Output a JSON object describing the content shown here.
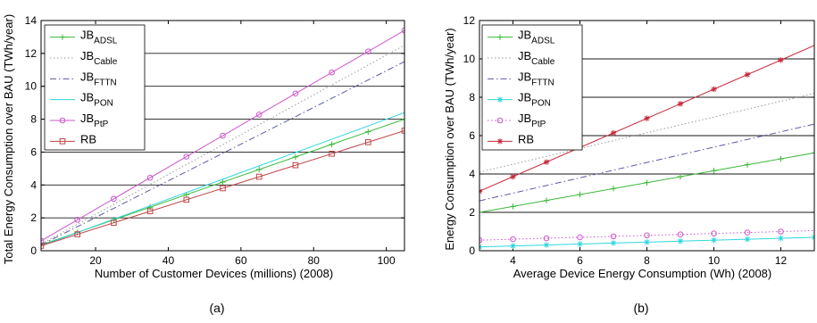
{
  "colors": {
    "green": "#39b839",
    "gray": "#9a9a9a",
    "navy": "#5a5aa0",
    "cyan": "#2fd6dd",
    "magenta": "#cc55cc",
    "red": "#c0454a",
    "darkred": "#c8283c"
  },
  "chart_data": [
    {
      "id": "a",
      "type": "line",
      "caption": "(a)",
      "xlabel": "Number of Customer Devices (millions) (2008)",
      "ylabel": "Total Energy Consumption over BAU (TWh/year)",
      "xlim": [
        5,
        105
      ],
      "ylim": [
        0,
        14
      ],
      "xticks": [
        20,
        40,
        60,
        80,
        100
      ],
      "yticks": [
        0,
        2,
        4,
        6,
        8,
        10,
        12,
        14
      ],
      "grid": "horizontal",
      "legend": "top-left",
      "series": [
        {
          "base": "JB",
          "sub": "ADSL",
          "color": "green",
          "dash": "",
          "marker": "plus",
          "x": [
            5,
            105
          ],
          "y": [
            0.35,
            8.0
          ],
          "mx": [
            15,
            25,
            35,
            45,
            55,
            65,
            75,
            85,
            95,
            105
          ]
        },
        {
          "base": "JB",
          "sub": "Cable",
          "color": "gray",
          "dash": "1.5,2.5",
          "marker": "none",
          "x": [
            5,
            105
          ],
          "y": [
            0.4,
            12.5
          ],
          "mx": []
        },
        {
          "base": "JB",
          "sub": "FTTN",
          "color": "navy",
          "dash": "7,3,1.5,3",
          "marker": "none",
          "x": [
            5,
            105
          ],
          "y": [
            0.35,
            11.5
          ],
          "mx": []
        },
        {
          "base": "JB",
          "sub": "PON",
          "color": "cyan",
          "dash": "",
          "marker": "none",
          "x": [
            5,
            105
          ],
          "y": [
            0.3,
            8.4
          ],
          "mx": []
        },
        {
          "base": "JB",
          "sub": "PtP",
          "color": "magenta",
          "dash": "",
          "marker": "circle",
          "x": [
            5,
            105
          ],
          "y": [
            0.6,
            13.4
          ],
          "mx": [
            5,
            15,
            25,
            35,
            45,
            55,
            65,
            75,
            85,
            95,
            105
          ]
        },
        {
          "base": "RB",
          "sub": "",
          "color": "red",
          "dash": "",
          "marker": "square",
          "x": [
            5,
            105
          ],
          "y": [
            0.3,
            7.3
          ],
          "mx": [
            5,
            15,
            25,
            35,
            45,
            55,
            65,
            75,
            85,
            95,
            105
          ]
        }
      ]
    },
    {
      "id": "b",
      "type": "line",
      "caption": "(b)",
      "xlabel": "Average Device Energy Consumption (Wh) (2008)",
      "ylabel": "Energy Consumption over BAU (TWh/year)",
      "xlim": [
        3,
        13
      ],
      "ylim": [
        0,
        12
      ],
      "xticks": [
        4,
        6,
        8,
        10,
        12
      ],
      "yticks": [
        0,
        2,
        4,
        6,
        8,
        10,
        12
      ],
      "grid": "horizontal",
      "legend": "top-left",
      "series": [
        {
          "base": "JB",
          "sub": "ADSL",
          "color": "green",
          "dash": "",
          "marker": "plus",
          "x": [
            3,
            13
          ],
          "y": [
            2.0,
            5.1
          ],
          "mx": [
            3,
            4,
            5,
            6,
            7,
            8,
            9,
            10,
            11,
            12,
            13
          ]
        },
        {
          "base": "JB",
          "sub": "Cable",
          "color": "gray",
          "dash": "1.5,2.5",
          "marker": "none",
          "x": [
            3,
            13
          ],
          "y": [
            4.1,
            8.2
          ],
          "mx": []
        },
        {
          "base": "JB",
          "sub": "FTTN",
          "color": "navy",
          "dash": "7,3,1.5,3",
          "marker": "none",
          "x": [
            3,
            13
          ],
          "y": [
            2.6,
            6.6
          ],
          "mx": []
        },
        {
          "base": "JB",
          "sub": "PON",
          "color": "cyan",
          "dash": "",
          "marker": "star",
          "x": [
            3,
            13
          ],
          "y": [
            0.2,
            0.7
          ],
          "mx": [
            3,
            4,
            5,
            6,
            7,
            8,
            9,
            10,
            11,
            12,
            13
          ]
        },
        {
          "base": "JB",
          "sub": "PtP",
          "color": "magenta",
          "dash": "1.5,2.5",
          "marker": "circle",
          "x": [
            3,
            13
          ],
          "y": [
            0.55,
            1.05
          ],
          "mx": [
            3,
            4,
            5,
            6,
            7,
            8,
            9,
            10,
            11,
            12
          ]
        },
        {
          "base": "RB",
          "sub": "",
          "color": "darkred",
          "dash": "",
          "marker": "star",
          "x": [
            3,
            13
          ],
          "y": [
            3.1,
            10.7
          ],
          "mx": [
            3,
            4,
            5,
            6,
            7,
            8,
            9,
            10,
            11,
            12
          ]
        }
      ]
    }
  ]
}
